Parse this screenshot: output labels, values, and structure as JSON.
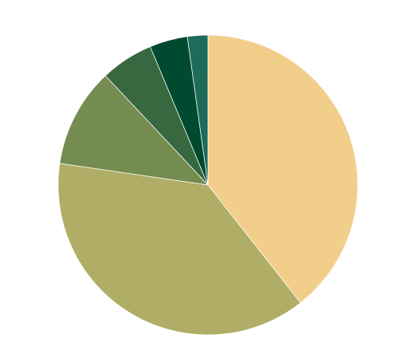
{
  "chart_data": {
    "type": "pie",
    "title": "",
    "start_angle_deg": -90,
    "direction": "clockwise",
    "legend": "none",
    "slices": [
      {
        "value": 39.4,
        "color": "#f2ce8b"
      },
      {
        "value": 37.9,
        "color": "#b0ad66"
      },
      {
        "value": 10.7,
        "color": "#758c50"
      },
      {
        "value": 5.7,
        "color": "#386840"
      },
      {
        "value": 4.1,
        "color": "#004a30"
      },
      {
        "value": 2.2,
        "color": "#1e6b5a"
      }
    ]
  }
}
